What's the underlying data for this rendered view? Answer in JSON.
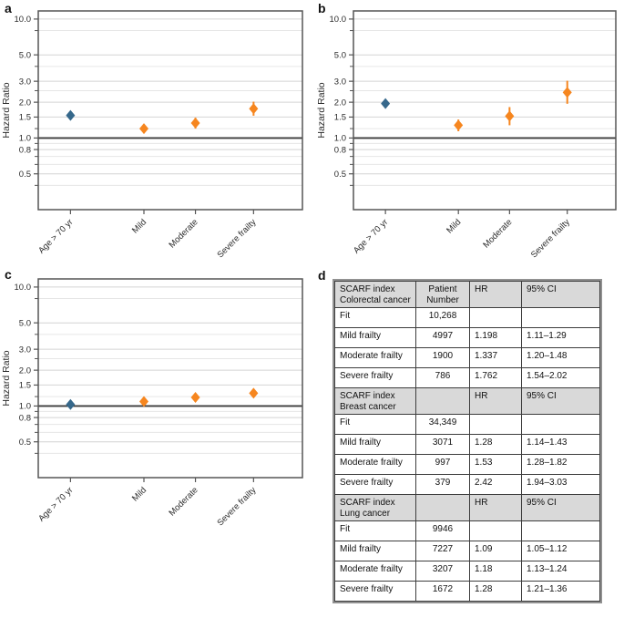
{
  "panels": {
    "a": {
      "label": "a"
    },
    "b": {
      "label": "b"
    },
    "c": {
      "label": "c"
    },
    "d": {
      "label": "d"
    }
  },
  "colors": {
    "age_marker": "#36688b",
    "frailty_marker": "#f6861f",
    "reference_line": "#3c3c3c",
    "grid_major": "#d4d4d4",
    "grid_minor": "#e6e6e6",
    "axis": "#555555",
    "tick_text": "#2b2b2b",
    "table_header_bg": "#d9d9d9",
    "table_border": "#3d3d3d"
  },
  "chart_data": [
    {
      "id": "a",
      "type": "scatter",
      "title": "",
      "xlabel": "",
      "ylabel": "Hazard Ratio",
      "y_scale": "log",
      "ylim": [
        0.25,
        11.7
      ],
      "grid": true,
      "legend": "none",
      "reference_line": 1.0,
      "y_ticks_labeled": [
        10.0,
        5.0,
        3.0,
        2.0,
        1.5,
        1.0,
        0.8,
        0.5
      ],
      "y_ticks_minor": [
        8,
        4,
        2.5,
        1.2,
        0.9,
        0.7,
        0.6,
        0.4
      ],
      "categories": [
        "Age > 70 yr",
        "Mild",
        "Moderate",
        "Severe frailty"
      ],
      "series_note": "SCARF index Colorectal cancer",
      "points": [
        {
          "category": "Age > 70 yr",
          "hr": 1.55,
          "ci_low": 1.47,
          "ci_high": 1.64,
          "color_key": "age"
        },
        {
          "category": "Mild",
          "hr": 1.198,
          "ci_low": 1.11,
          "ci_high": 1.29,
          "color_key": "frailty"
        },
        {
          "category": "Moderate",
          "hr": 1.337,
          "ci_low": 1.2,
          "ci_high": 1.48,
          "color_key": "frailty"
        },
        {
          "category": "Severe frailty",
          "hr": 1.762,
          "ci_low": 1.54,
          "ci_high": 2.02,
          "color_key": "frailty"
        }
      ]
    },
    {
      "id": "b",
      "type": "scatter",
      "title": "",
      "xlabel": "",
      "ylabel": "Hazard Ratio",
      "y_scale": "log",
      "ylim": [
        0.25,
        11.7
      ],
      "grid": true,
      "legend": "none",
      "reference_line": 1.0,
      "y_ticks_labeled": [
        10.0,
        5.0,
        3.0,
        2.0,
        1.5,
        1.0,
        0.8,
        0.5
      ],
      "y_ticks_minor": [
        8,
        4,
        2.5,
        1.2,
        0.9,
        0.7,
        0.6,
        0.4
      ],
      "categories": [
        "Age > 70 yr",
        "Mild",
        "Moderate",
        "Severe frailty"
      ],
      "series_note": "SCARF index Breast cancer",
      "points": [
        {
          "category": "Age > 70 yr",
          "hr": 1.95,
          "ci_low": 1.84,
          "ci_high": 2.08,
          "color_key": "age"
        },
        {
          "category": "Mild",
          "hr": 1.28,
          "ci_low": 1.14,
          "ci_high": 1.43,
          "color_key": "frailty"
        },
        {
          "category": "Moderate",
          "hr": 1.53,
          "ci_low": 1.28,
          "ci_high": 1.82,
          "color_key": "frailty"
        },
        {
          "category": "Severe frailty",
          "hr": 2.42,
          "ci_low": 1.94,
          "ci_high": 3.03,
          "color_key": "frailty"
        }
      ]
    },
    {
      "id": "c",
      "type": "scatter",
      "title": "",
      "xlabel": "",
      "ylabel": "Hazard Ratio",
      "y_scale": "log",
      "ylim": [
        0.25,
        11.7
      ],
      "grid": true,
      "legend": "none",
      "reference_line": 1.0,
      "y_ticks_labeled": [
        10.0,
        5.0,
        3.0,
        2.0,
        1.5,
        1.0,
        0.8,
        0.5
      ],
      "y_ticks_minor": [
        8,
        4,
        2.5,
        1.2,
        0.9,
        0.7,
        0.6,
        0.4
      ],
      "categories": [
        "Age > 70 yr",
        "Mild",
        "Moderate",
        "Severe frailty"
      ],
      "series_note": "SCARF index Lung cancer",
      "points": [
        {
          "category": "Age > 70 yr",
          "hr": 1.03,
          "ci_low": 1.0,
          "ci_high": 1.06,
          "color_key": "age"
        },
        {
          "category": "Mild",
          "hr": 1.09,
          "ci_low": 1.05,
          "ci_high": 1.12,
          "color_key": "frailty"
        },
        {
          "category": "Moderate",
          "hr": 1.18,
          "ci_low": 1.13,
          "ci_high": 1.24,
          "color_key": "frailty"
        },
        {
          "category": "Severe frailty",
          "hr": 1.28,
          "ci_low": 1.21,
          "ci_high": 1.36,
          "color_key": "frailty"
        }
      ]
    }
  ],
  "table": {
    "sections": [
      {
        "header": [
          "SCARF index Colorectal cancer",
          "Patient Number",
          "HR",
          "95% CI"
        ],
        "rows": [
          [
            "Fit",
            "10,268",
            "",
            ""
          ],
          [
            "Mild frailty",
            "4997",
            "1.198",
            "1.11–1.29"
          ],
          [
            "Moderate frailty",
            "1900",
            "1.337",
            "1.20–1.48"
          ],
          [
            "Severe frailty",
            "786",
            "1.762",
            "1.54–2.02"
          ]
        ]
      },
      {
        "header": [
          "SCARF index Breast cancer",
          "",
          "HR",
          "95% CI"
        ],
        "rows": [
          [
            "Fit",
            "34,349",
            "",
            ""
          ],
          [
            "Mild frailty",
            "3071",
            "1.28",
            "1.14–1.43"
          ],
          [
            "Moderate frailty",
            "997",
            "1.53",
            "1.28–1.82"
          ],
          [
            "Severe frailty",
            "379",
            "2.42",
            "1.94–3.03"
          ]
        ]
      },
      {
        "header": [
          "SCARF index Lung cancer",
          "",
          "HR",
          "95% CI"
        ],
        "rows": [
          [
            "Fit",
            "9946",
            "",
            ""
          ],
          [
            "Mild frailty",
            "7227",
            "1.09",
            "1.05–1.12"
          ],
          [
            "Moderate frailty",
            "3207",
            "1.18",
            "1.13–1.24"
          ],
          [
            "Severe frailty",
            "1672",
            "1.28",
            "1.21–1.36"
          ]
        ]
      }
    ]
  }
}
